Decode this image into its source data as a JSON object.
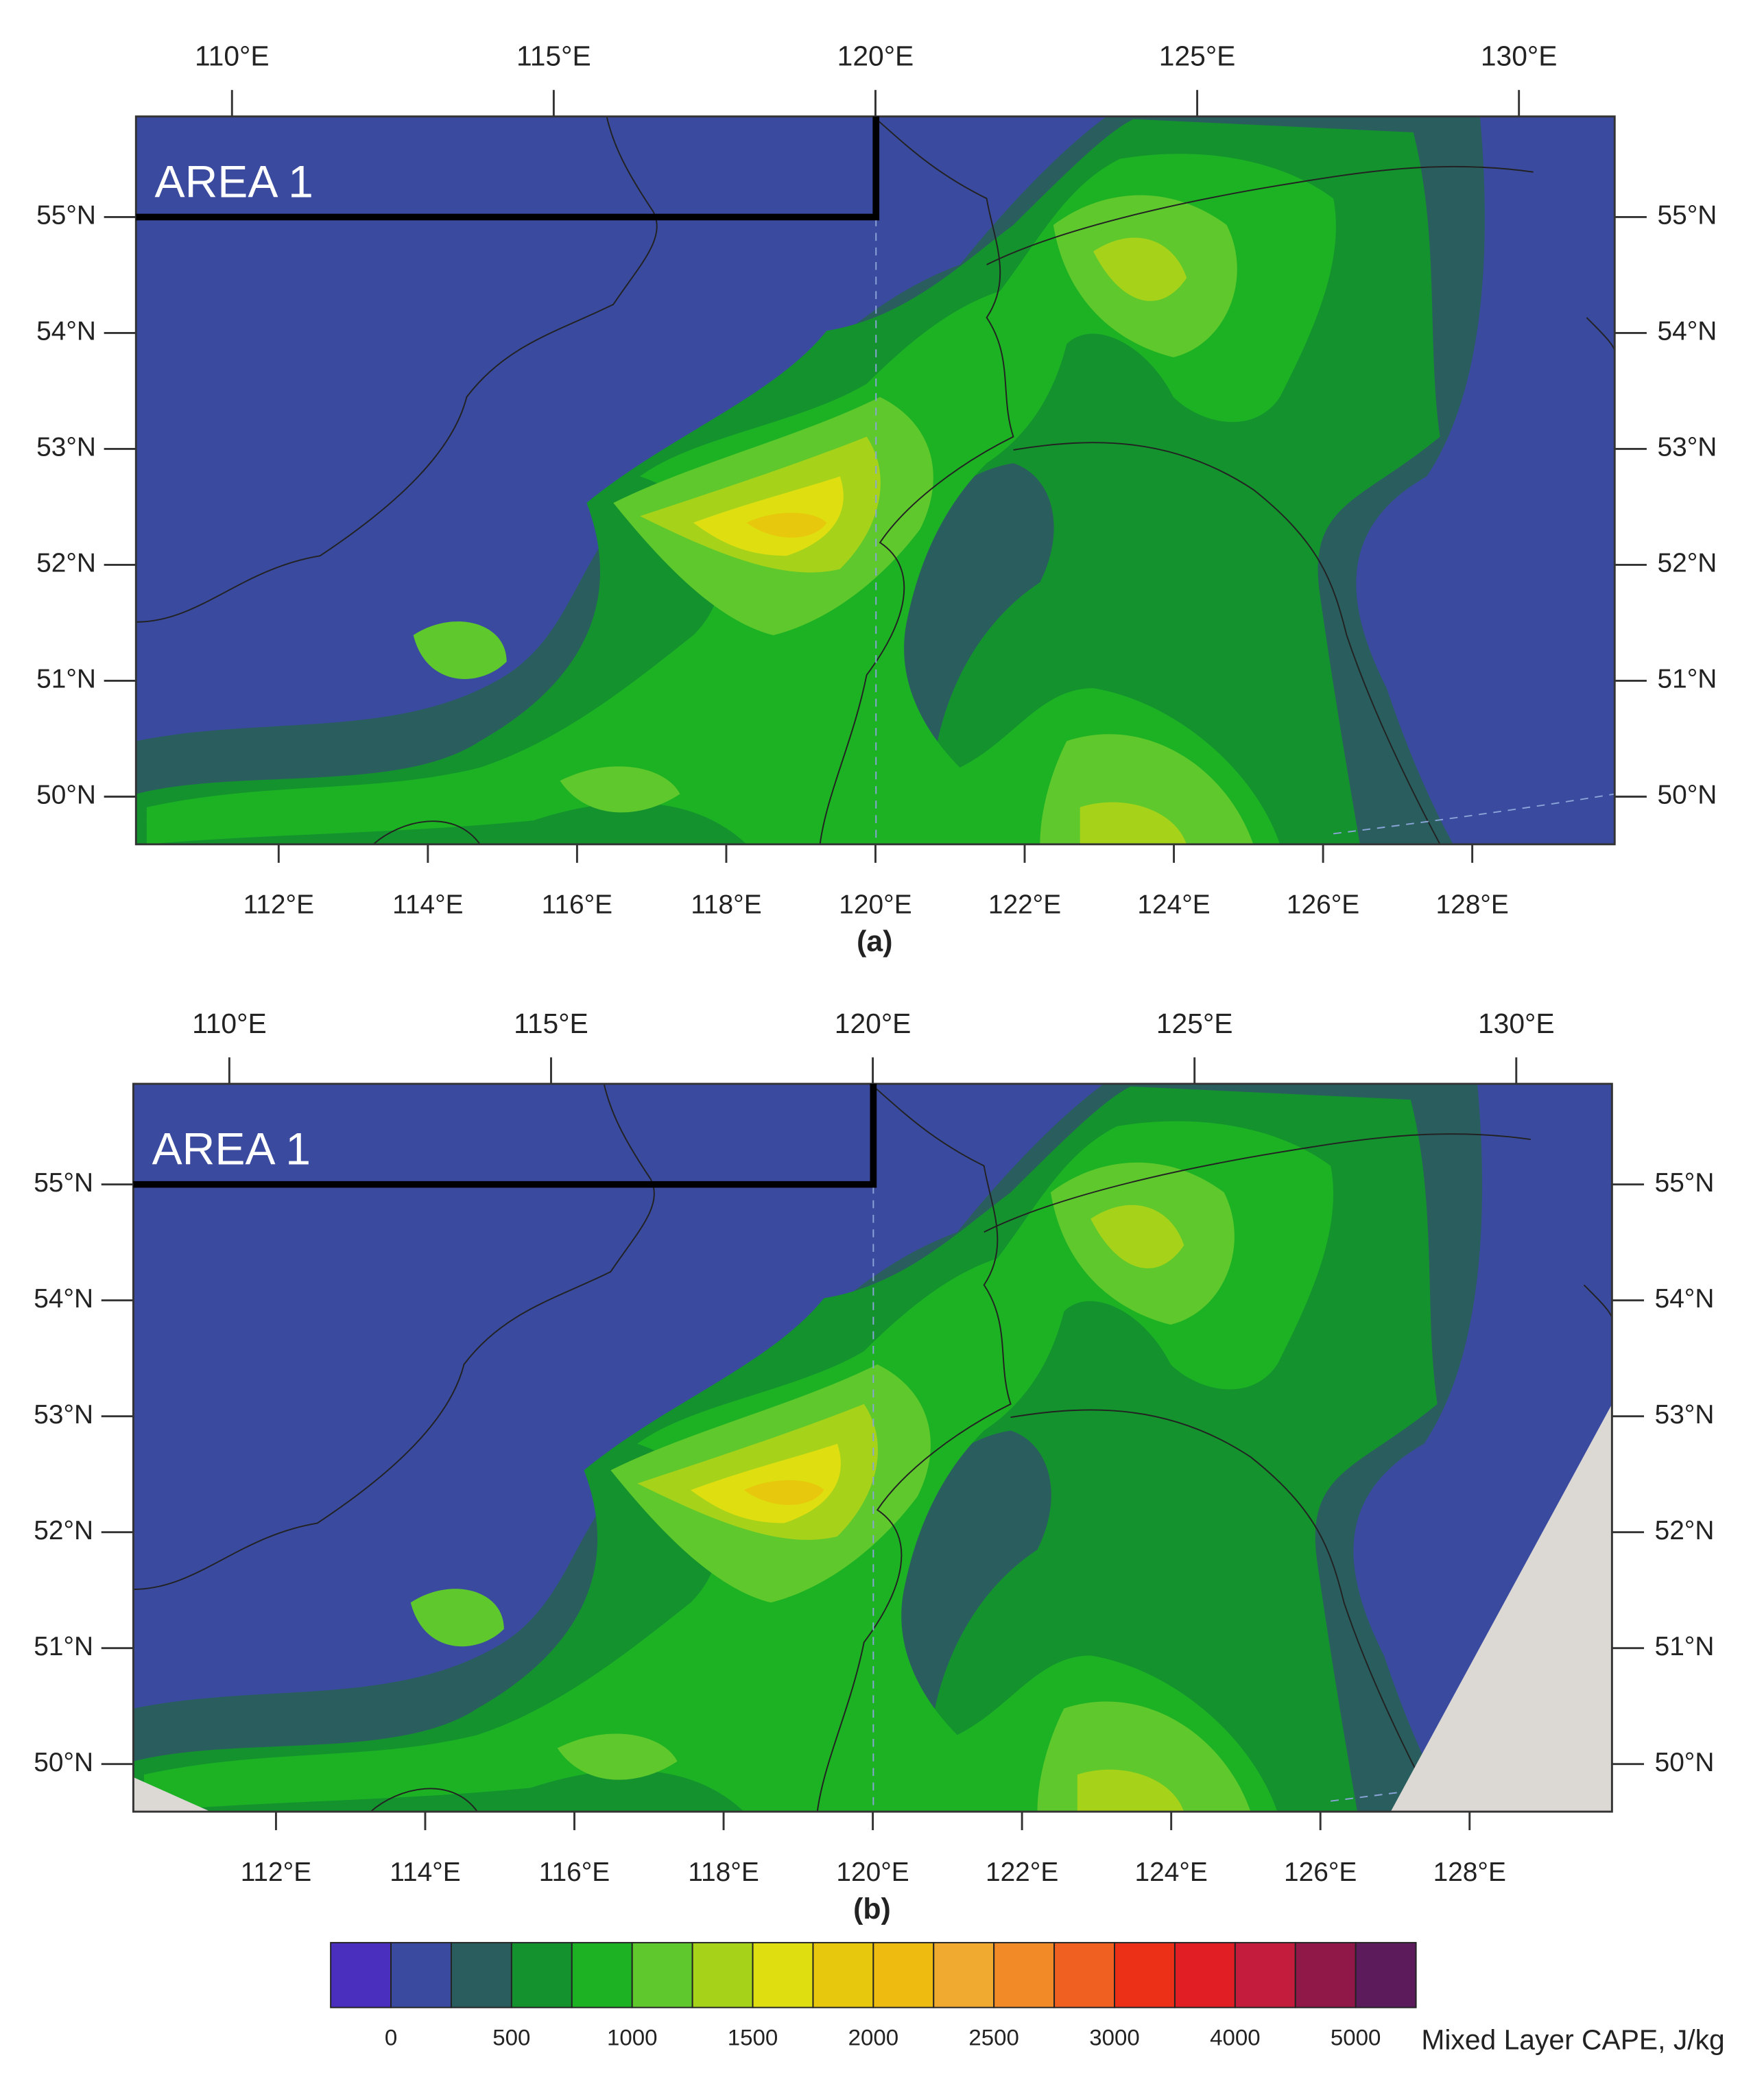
{
  "panels": [
    {
      "label": "(a)",
      "area_label": "AREA 1",
      "top_lon_labels": [
        "110°E",
        "115°E",
        "120°E",
        "125°E",
        "130°E"
      ],
      "bottom_lon_labels": [
        "112°E",
        "114°E",
        "116°E",
        "118°E",
        "120°E",
        "122°E",
        "124°E",
        "126°E",
        "128°E"
      ],
      "lat_labels": [
        "55°N",
        "54°N",
        "53°N",
        "52°N",
        "51°N",
        "50°N"
      ]
    },
    {
      "label": "(b)",
      "area_label": "AREA 1",
      "top_lon_labels": [
        "110°E",
        "115°E",
        "120°E",
        "125°E",
        "130°E"
      ],
      "bottom_lon_labels": [
        "112°E",
        "114°E",
        "116°E",
        "118°E",
        "120°E",
        "122°E",
        "124°E",
        "126°E",
        "128°E"
      ],
      "lat_labels": [
        "55°N",
        "54°N",
        "53°N",
        "52°N",
        "51°N",
        "50°N"
      ]
    }
  ],
  "colorbar": {
    "colors": [
      "#4a2fbf",
      "#3a4a9e",
      "#2a5e5e",
      "#14922e",
      "#1cb224",
      "#5ec82c",
      "#a6d31a",
      "#dede10",
      "#e8c80c",
      "#eebb10",
      "#f0aa30",
      "#f28a28",
      "#f06020",
      "#ec3018",
      "#e01e24",
      "#c41c3c",
      "#901848",
      "#5c1c5c"
    ],
    "ticks": [
      0,
      500,
      1000,
      1500,
      2000,
      2500,
      3000,
      4000,
      5000
    ],
    "label": "Mixed Layer CAPE, J/kg"
  }
}
